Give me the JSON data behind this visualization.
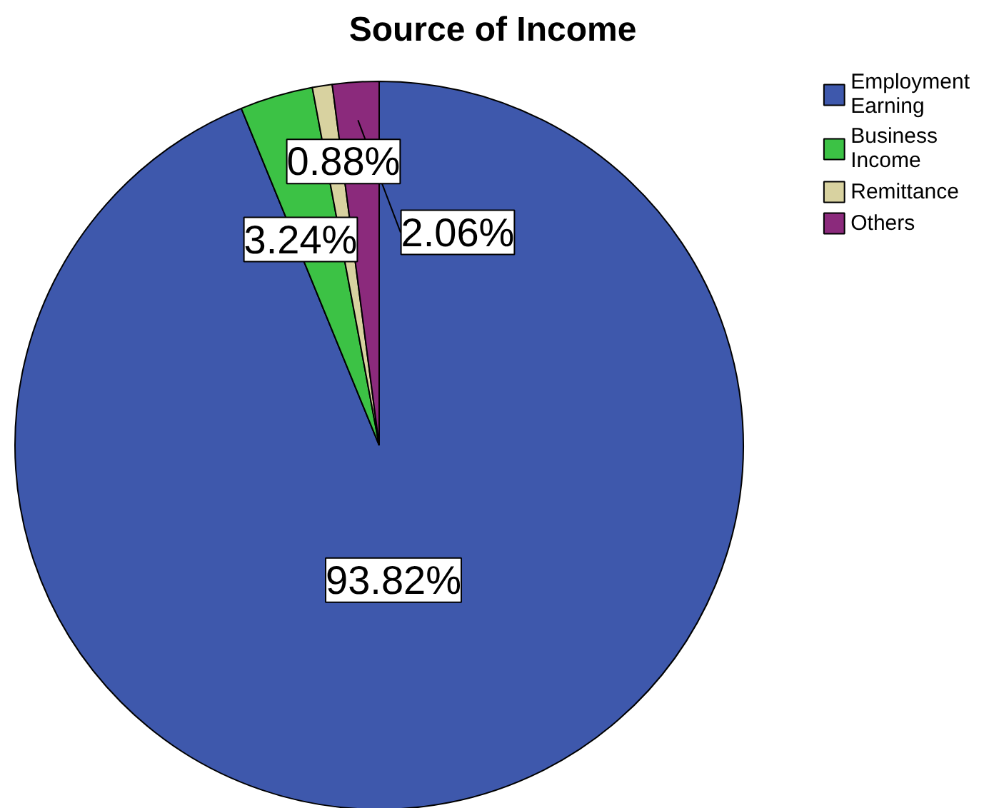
{
  "chart_data": {
    "type": "pie",
    "title": "Source of Income",
    "categories": [
      "Employment Earning",
      "Business Income",
      "Remittance",
      "Others"
    ],
    "values": [
      93.82,
      3.24,
      0.88,
      2.06
    ],
    "colors": [
      "#3e58ac",
      "#3cc245",
      "#d8d2a0",
      "#8b2a7c"
    ],
    "value_labels": [
      "93.82%",
      "3.24%",
      "0.88%",
      "2.06%"
    ],
    "legend": "top right"
  }
}
